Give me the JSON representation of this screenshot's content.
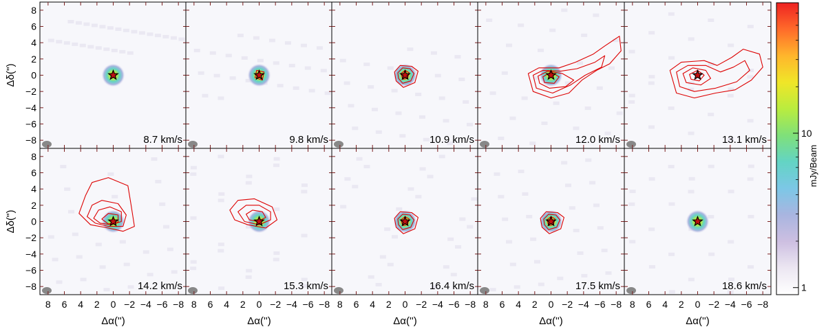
{
  "chart_data": {
    "type": "heatmap",
    "subtype": "channel-map",
    "layout": "2 rows x 5 columns of panels",
    "xlabel": "Δα('')",
    "ylabel": "Δδ('')",
    "xlim": [
      9,
      -9
    ],
    "ylim": [
      -9,
      9
    ],
    "x_ticks": [
      8,
      6,
      4,
      2,
      0,
      -2,
      -4,
      -6,
      -8
    ],
    "y_ticks": [
      8,
      6,
      4,
      2,
      0,
      -2,
      -4,
      -6,
      -8
    ],
    "x_tick_labels": [
      "8",
      "6",
      "4",
      "2",
      "0",
      "−2",
      "−4",
      "−6",
      "−8"
    ],
    "y_tick_labels": [
      "8",
      "6",
      "4",
      "2",
      "0",
      "−2",
      "−4",
      "−6",
      "−8"
    ],
    "colorbar": {
      "label": "mJy/Beam",
      "scale": "log",
      "range": [
        0.9,
        70
      ],
      "ticks": [
        1,
        10
      ],
      "tick_labels": [
        "1",
        "10"
      ],
      "colors": [
        "#ffffff",
        "#ece7f2",
        "#cdbfe1",
        "#a9b5e0",
        "#7cc7e6",
        "#63d4c4",
        "#7fe07a",
        "#b9ec3f",
        "#f0e628",
        "#ffb62c",
        "#ff6b2a",
        "#ee2222"
      ]
    },
    "contour_color": "#dd0000",
    "star_color": "#c01010",
    "panels": [
      {
        "velocity": 8.7,
        "label": "8.7 km/s",
        "continuum": true,
        "contours": "none"
      },
      {
        "velocity": 9.8,
        "label": "9.8 km/s",
        "continuum": true,
        "contours": "weak"
      },
      {
        "velocity": 10.9,
        "label": "10.9 km/s",
        "continuum": true,
        "contours": "compact"
      },
      {
        "velocity": 12.0,
        "label": "12.0 km/s",
        "continuum": true,
        "contours": "extended to north-west"
      },
      {
        "velocity": 13.1,
        "label": "13.1 km/s",
        "continuum": false,
        "contours": "extended to west"
      },
      {
        "velocity": 14.2,
        "label": "14.2 km/s",
        "continuum": true,
        "contours": "extended to north-east"
      },
      {
        "velocity": 15.3,
        "label": "15.3 km/s",
        "continuum": true,
        "contours": "extended to north-east"
      },
      {
        "velocity": 16.4,
        "label": "16.4 km/s",
        "continuum": true,
        "contours": "compact"
      },
      {
        "velocity": 17.5,
        "label": "17.5 km/s",
        "continuum": true,
        "contours": "compact"
      },
      {
        "velocity": 18.6,
        "label": "18.6 km/s",
        "continuum": true,
        "contours": "none"
      }
    ]
  }
}
